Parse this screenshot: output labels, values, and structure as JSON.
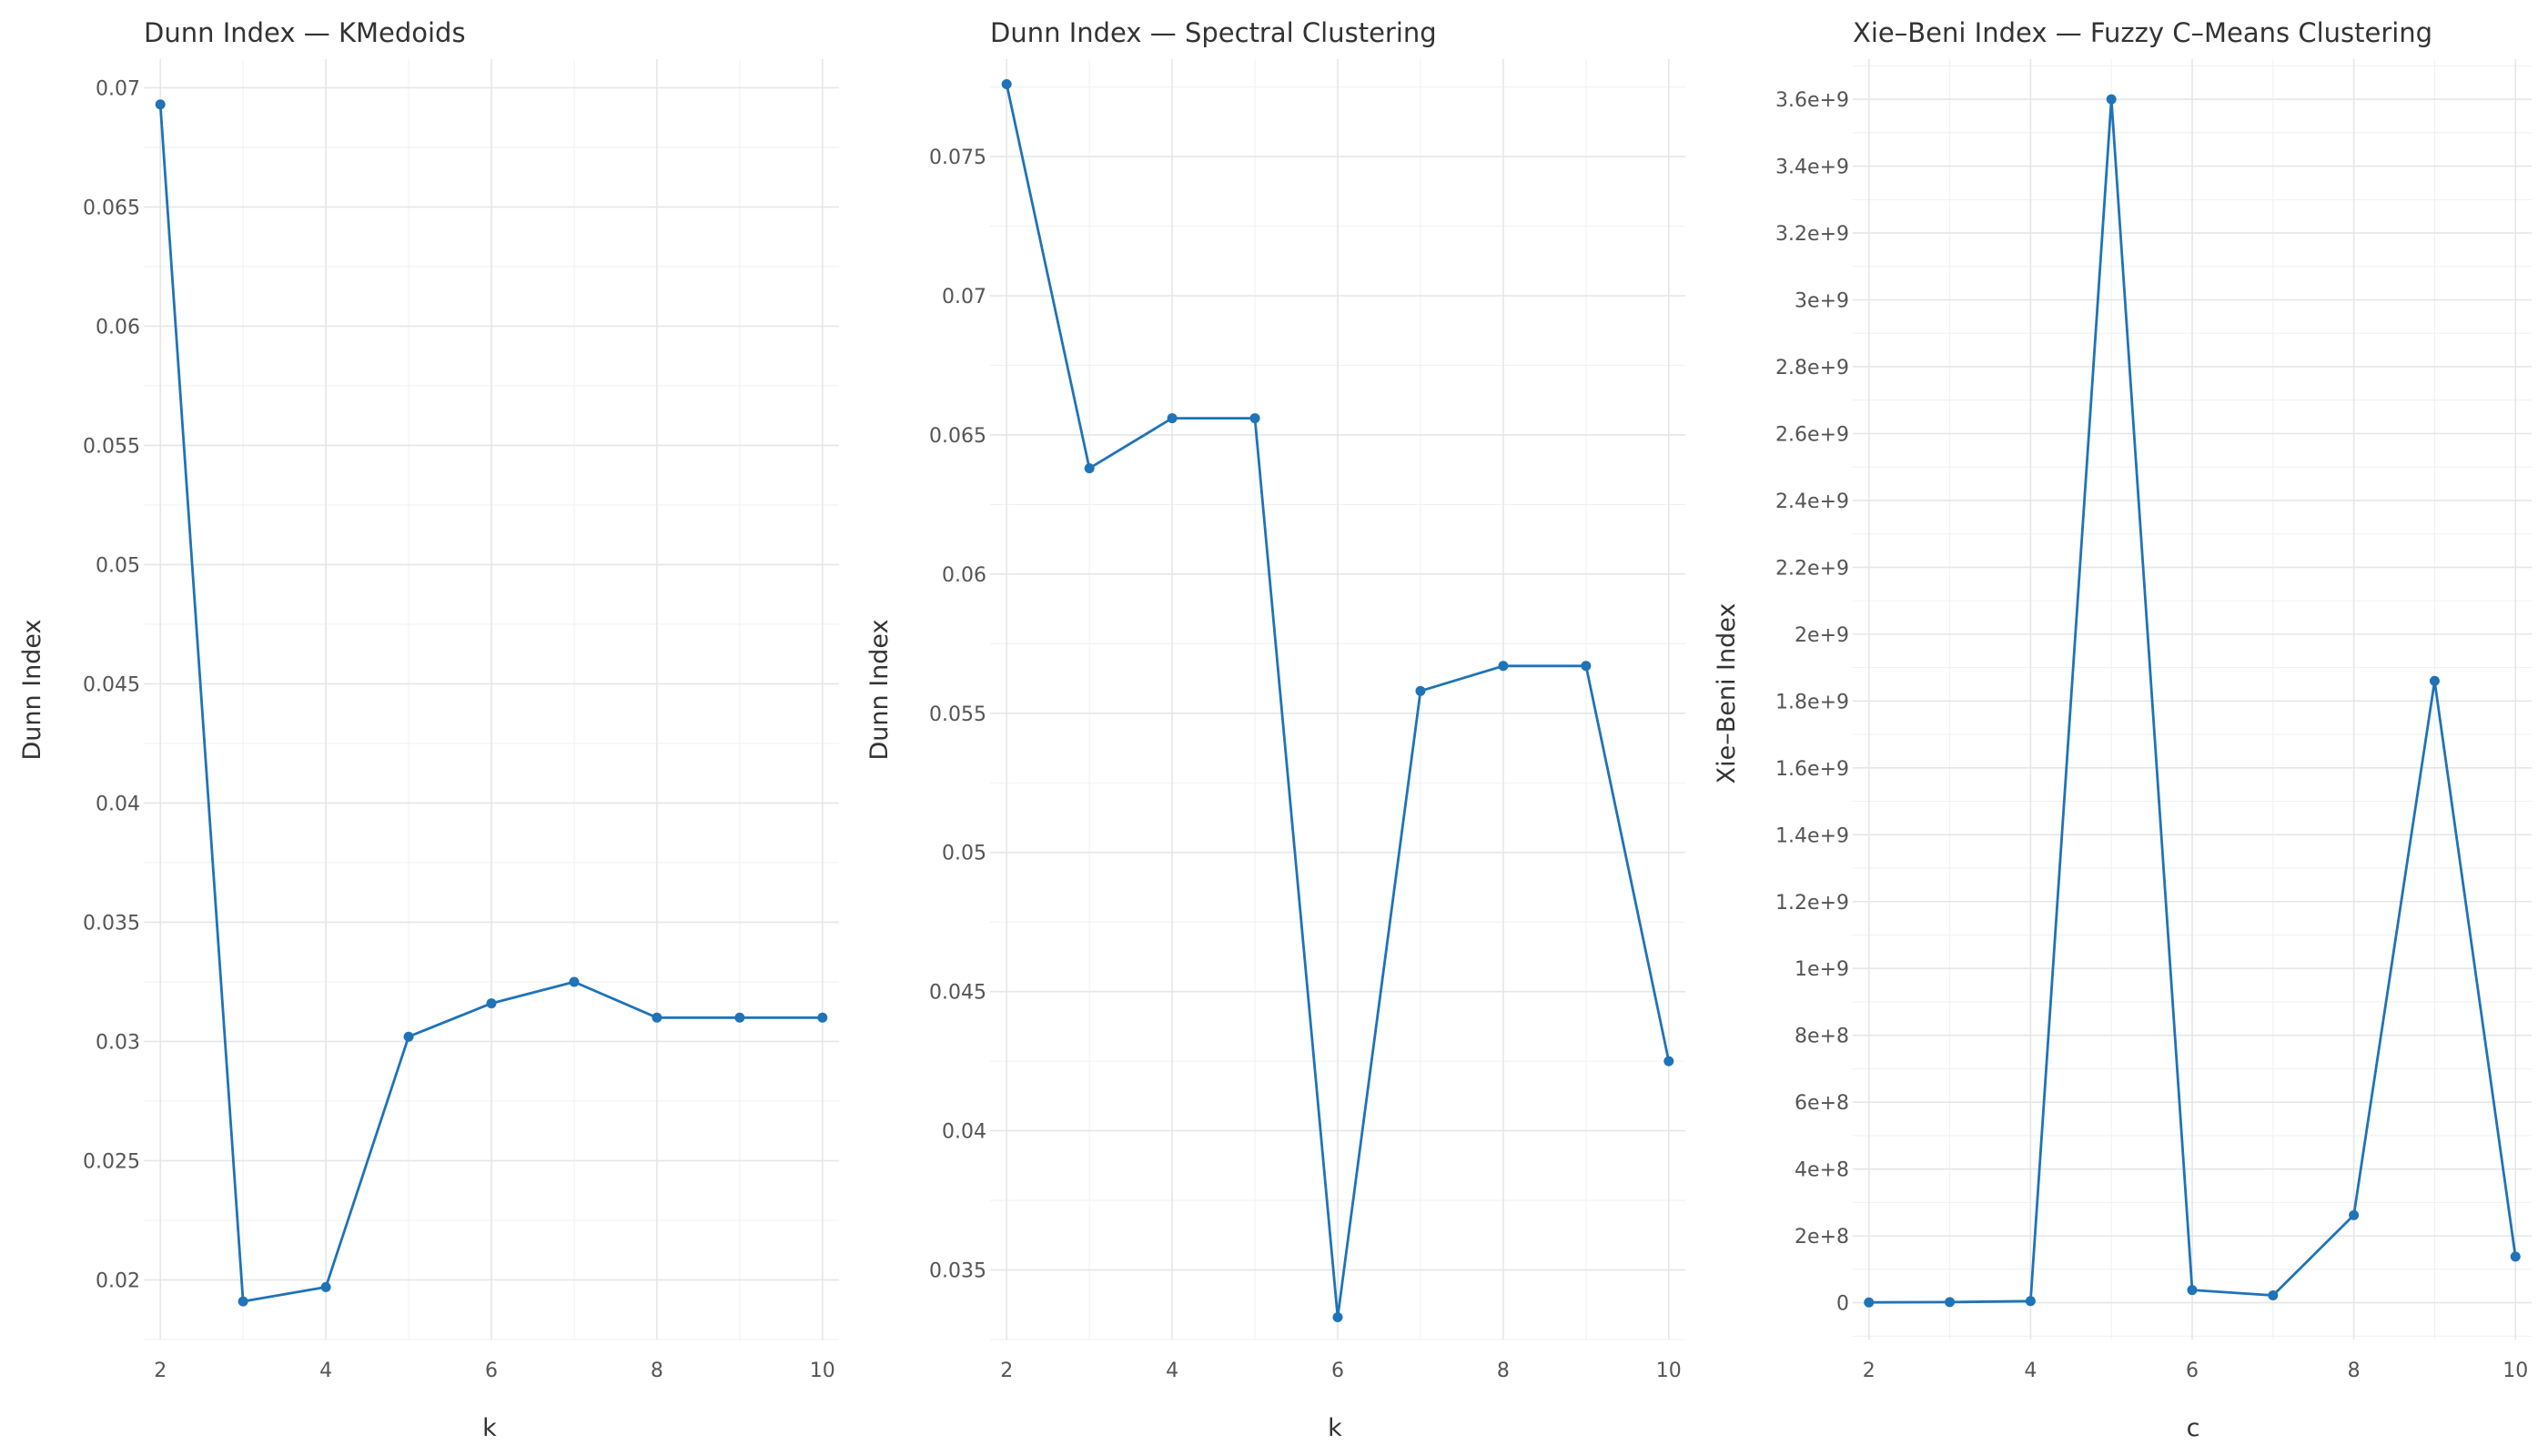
{
  "colors": {
    "series": "#1f73b7"
  },
  "chart_data": [
    {
      "type": "line",
      "title": "Dunn Index — KMedoids",
      "xlabel": "k",
      "ylabel": "Dunn Index",
      "xlim": [
        1.8,
        10.2
      ],
      "ylim": [
        0.0175,
        0.0712
      ],
      "grid": true,
      "x_ticks": [
        2,
        4,
        6,
        8,
        10
      ],
      "x_tick_labels": [
        "2",
        "4",
        "6",
        "8",
        "10"
      ],
      "y_ticks": [
        0.02,
        0.025,
        0.03,
        0.035,
        0.04,
        0.045,
        0.05,
        0.055,
        0.06,
        0.065,
        0.07
      ],
      "y_tick_labels": [
        "0.02",
        "0.025",
        "0.03",
        "0.035",
        "0.04",
        "0.045",
        "0.05",
        "0.055",
        "0.06",
        "0.065",
        "0.07"
      ],
      "series": [
        {
          "x": [
            2,
            3,
            4,
            5,
            6,
            7,
            8,
            9,
            10
          ],
          "values": [
            0.0693,
            0.0191,
            0.0197,
            0.0302,
            0.0316,
            0.0325,
            0.031,
            0.031,
            0.031
          ]
        }
      ]
    },
    {
      "type": "line",
      "title": "Dunn Index — Spectral Clustering",
      "xlabel": "k",
      "ylabel": "Dunn Index",
      "xlim": [
        1.8,
        10.2
      ],
      "ylim": [
        0.0325,
        0.0785
      ],
      "grid": true,
      "x_ticks": [
        2,
        4,
        6,
        8,
        10
      ],
      "x_tick_labels": [
        "2",
        "4",
        "6",
        "8",
        "10"
      ],
      "y_ticks": [
        0.035,
        0.04,
        0.045,
        0.05,
        0.055,
        0.06,
        0.065,
        0.07,
        0.075
      ],
      "y_tick_labels": [
        "0.035",
        "0.04",
        "0.045",
        "0.05",
        "0.055",
        "0.06",
        "0.065",
        "0.07",
        "0.075"
      ],
      "series": [
        {
          "x": [
            2,
            3,
            4,
            5,
            6,
            7,
            8,
            9,
            10
          ],
          "values": [
            0.0776,
            0.0638,
            0.0656,
            0.0656,
            0.0333,
            0.0558,
            0.0567,
            0.0567,
            0.0425
          ]
        }
      ]
    },
    {
      "type": "line",
      "title": "Xie–Beni Index — Fuzzy C–Means Clustering",
      "xlabel": "c",
      "ylabel": "Xie–Beni Index",
      "xlim": [
        1.8,
        10.2
      ],
      "ylim": [
        -110000000,
        3720000000
      ],
      "grid": true,
      "x_ticks": [
        2,
        4,
        6,
        8,
        10
      ],
      "x_tick_labels": [
        "2",
        "4",
        "6",
        "8",
        "10"
      ],
      "y_ticks": [
        0,
        200000000,
        400000000,
        600000000,
        800000000,
        1000000000,
        1200000000,
        1400000000,
        1600000000,
        1800000000,
        2000000000,
        2200000000,
        2400000000,
        2600000000,
        2800000000,
        3000000000,
        3200000000,
        3400000000,
        3600000000
      ],
      "y_tick_labels": [
        "0",
        "2e+8",
        "4e+8",
        "6e+8",
        "8e+8",
        "1e+9",
        "1.2e+9",
        "1.4e+9",
        "1.6e+9",
        "1.8e+9",
        "2e+9",
        "2.2e+9",
        "2.4e+9",
        "2.6e+9",
        "2.8e+9",
        "3e+9",
        "3.2e+9",
        "3.4e+9",
        "3.6e+9"
      ],
      "series": [
        {
          "x": [
            2,
            3,
            4,
            5,
            6,
            7,
            8,
            9,
            10
          ],
          "values": [
            1000000,
            2000000,
            5000000,
            3600000000,
            38000000,
            22000000,
            262000000,
            1860000000,
            138000000
          ]
        }
      ]
    }
  ]
}
